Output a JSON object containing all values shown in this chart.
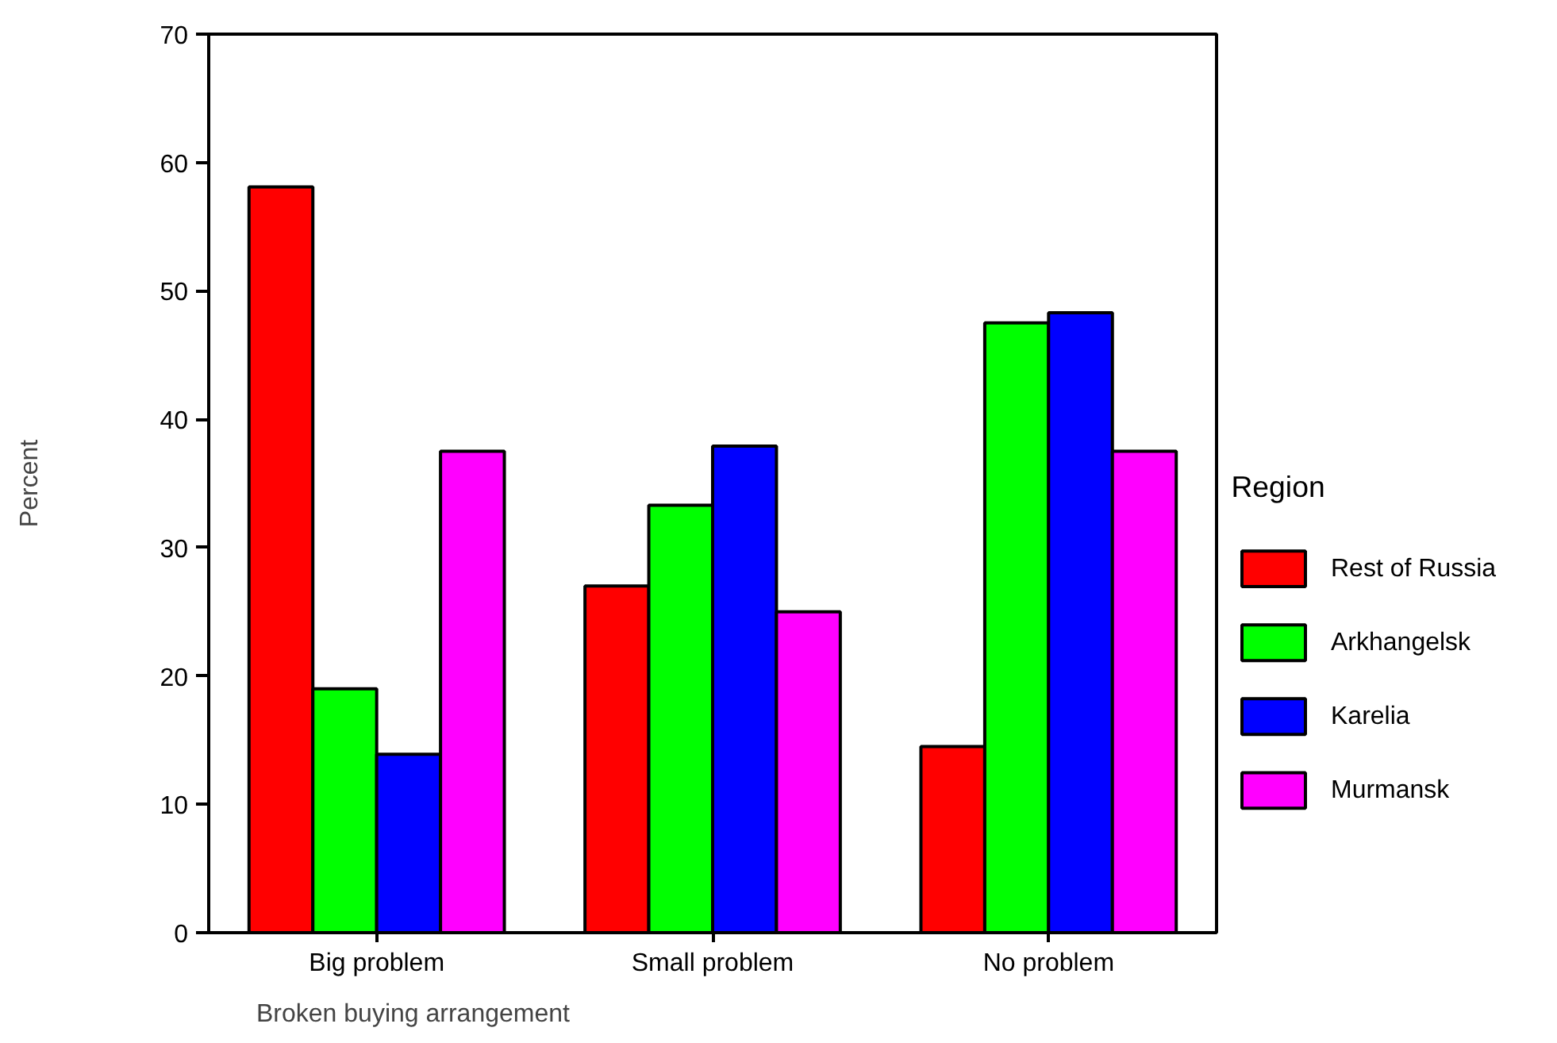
{
  "chart_data": {
    "type": "bar",
    "xlabel": "Broken buying arrangement",
    "ylabel": "Percent",
    "legend_title": "Region",
    "categories": [
      "Big problem",
      "Small problem",
      "No problem"
    ],
    "series": [
      {
        "name": "Rest of Russia",
        "color": "#ff0000",
        "values": [
          58.1,
          27.0,
          14.5
        ]
      },
      {
        "name": "Arkhangelsk",
        "color": "#00ff00",
        "values": [
          19.0,
          33.3,
          47.5
        ]
      },
      {
        "name": "Karelia",
        "color": "#0000ff",
        "values": [
          13.9,
          37.9,
          48.3
        ]
      },
      {
        "name": "Murmansk",
        "color": "#ff00ff",
        "values": [
          37.5,
          25.0,
          37.5
        ]
      }
    ],
    "ylim": [
      0,
      70
    ],
    "yticks": [
      0,
      10,
      20,
      30,
      40,
      50,
      60,
      70
    ],
    "grid": false,
    "legend": "right"
  }
}
